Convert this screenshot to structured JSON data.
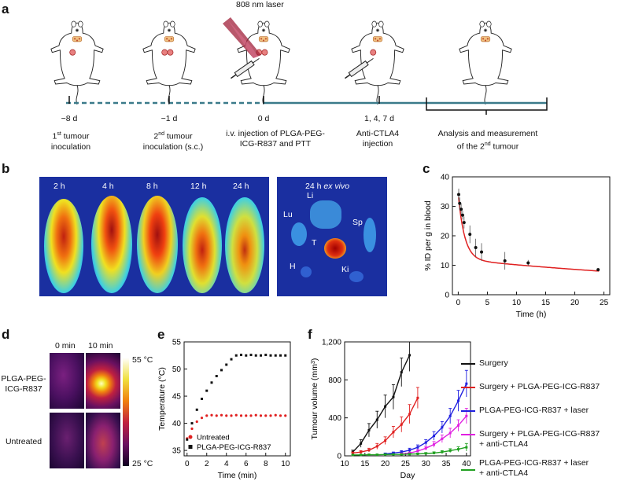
{
  "panels": {
    "a": "a",
    "b": "b",
    "c": "c",
    "d": "d",
    "e": "e",
    "f": "f"
  },
  "timeline": {
    "laser": "808 nm laser",
    "days": [
      "−8 d",
      "−1 d",
      "0 d",
      "1, 4, 7 d"
    ],
    "label1_pre": "1",
    "label1_sup": "st",
    "label1_post": " tumour",
    "label1_line2": "inoculation",
    "label2_pre": "2",
    "label2_sup": "nd",
    "label2_post": " tumour",
    "label2_line2": "inoculation (s.c.)",
    "label3_line1": "i.v. injection of PLGA-PEG-",
    "label3_line2": "ICG-R837 and PTT",
    "label4_line1": "Anti-CTLA4",
    "label4_line2": "injection",
    "label5_line1": "Analysis and measurement",
    "label5_line2": "of the 2",
    "label5_sup": "nd",
    "label5_post": " tumour"
  },
  "panel_b": {
    "times": [
      "2 h",
      "4 h",
      "8 h",
      "12 h",
      "24 h"
    ],
    "exvivo_title_pre": "24 h ",
    "exvivo_title_italic": "ex vivo",
    "organs": {
      "li": "Li",
      "lu": "Lu",
      "sp": "Sp",
      "t": "T",
      "h": "H",
      "ki": "Ki"
    }
  },
  "panel_d": {
    "col1": "0 min",
    "col2": "10 min",
    "row1_line1": "PLGA-PEG-",
    "row1_line2": "ICG-R837",
    "row2": "Untreated",
    "scale_max": "55 °C",
    "scale_min": "25 °C"
  },
  "chart_data": [
    {
      "panel": "c",
      "type": "scatter",
      "xlabel": "Time (h)",
      "ylabel": "% ID per g in blood",
      "xlim": [
        -1,
        26
      ],
      "ylim": [
        0,
        40
      ],
      "xticks": [
        0,
        5,
        10,
        15,
        20,
        25
      ],
      "yticks": [
        0,
        10,
        20,
        30,
        40
      ],
      "points": [
        {
          "x": 0.08,
          "y": 34,
          "err": 2
        },
        {
          "x": 0.25,
          "y": 31,
          "err": 2
        },
        {
          "x": 0.5,
          "y": 29,
          "err": 2
        },
        {
          "x": 0.75,
          "y": 27,
          "err": 1.5
        },
        {
          "x": 1,
          "y": 24.5,
          "err": 2
        },
        {
          "x": 2,
          "y": 20.5,
          "err": 3
        },
        {
          "x": 3,
          "y": 16,
          "err": 3
        },
        {
          "x": 4,
          "y": 14.5,
          "err": 3
        },
        {
          "x": 8,
          "y": 11.5,
          "err": 3
        },
        {
          "x": 12,
          "y": 10.8,
          "err": 1
        },
        {
          "x": 24,
          "y": 8.5,
          "err": 0.5
        }
      ],
      "fit_color": "#e02020"
    },
    {
      "panel": "e",
      "type": "scatter",
      "xlabel": "Time (min)",
      "ylabel": "Temperature (°C)",
      "xlim": [
        -0.3,
        10.5
      ],
      "ylim": [
        34,
        55
      ],
      "xticks": [
        0,
        2,
        4,
        6,
        8,
        10
      ],
      "yticks": [
        35,
        40,
        45,
        50,
        55
      ],
      "series": [
        {
          "name": "Untreated",
          "color": "#e02020",
          "marker": "circle",
          "x": [
            0,
            0.5,
            1,
            1.5,
            2,
            2.5,
            3,
            3.5,
            4,
            4.5,
            5,
            5.5,
            6,
            6.5,
            7,
            7.5,
            8,
            8.5,
            9,
            9.5,
            10
          ],
          "values": [
            37.2,
            39,
            40.3,
            41,
            41.4,
            41.5,
            41.4,
            41.5,
            41.4,
            41.4,
            41.5,
            41.4,
            41.4,
            41.4,
            41.5,
            41.4,
            41.4,
            41.4,
            41.5,
            41.4,
            41.4
          ]
        },
        {
          "name": "PLGA-PEG-ICG-R837",
          "color": "#111111",
          "marker": "square",
          "x": [
            0,
            0.5,
            1,
            1.5,
            2,
            2.5,
            3,
            3.5,
            4,
            4.5,
            5,
            5.5,
            6,
            6.5,
            7,
            7.5,
            8,
            8.5,
            9,
            9.5,
            10
          ],
          "values": [
            37,
            40,
            42.5,
            44.5,
            46,
            47.5,
            48.7,
            49.8,
            50.8,
            51.8,
            52.5,
            52.6,
            52.5,
            52.6,
            52.5,
            52.5,
            52.6,
            52.5,
            52.5,
            52.5,
            52.5
          ]
        }
      ]
    },
    {
      "panel": "f",
      "type": "line",
      "xlabel": "Day",
      "ylabel_pre": "Tumour volume (mm",
      "ylabel_sup": "3",
      "ylabel_post": ")",
      "xlim": [
        10,
        41
      ],
      "ylim": [
        0,
        1200
      ],
      "xticks": [
        10,
        15,
        20,
        25,
        30,
        35,
        40
      ],
      "yticks": [
        0,
        400,
        800,
        1200
      ],
      "ytick_labels": [
        "0",
        "400",
        "800",
        "1,200"
      ],
      "series": [
        {
          "name": "Surgery",
          "color": "#111111",
          "x": [
            12,
            14,
            16,
            18,
            20,
            22,
            24,
            26
          ],
          "values": [
            40,
            130,
            270,
            380,
            520,
            620,
            880,
            1060
          ],
          "err": [
            20,
            40,
            70,
            90,
            120,
            130,
            150,
            170
          ]
        },
        {
          "name": "Surgery + PLGA-PEG-ICG-R837",
          "color": "#e02020",
          "x": [
            12,
            14,
            16,
            18,
            20,
            22,
            24,
            26,
            28
          ],
          "values": [
            30,
            40,
            60,
            100,
            160,
            250,
            330,
            440,
            610
          ],
          "err": [
            10,
            15,
            20,
            30,
            40,
            60,
            80,
            100,
            110
          ]
        },
        {
          "name": "PLGA-PEG-ICG-R837 + laser",
          "color": "#2020e0",
          "x": [
            20,
            22,
            24,
            26,
            28,
            30,
            32,
            34,
            36,
            38,
            40
          ],
          "values": [
            20,
            30,
            40,
            60,
            90,
            140,
            210,
            300,
            420,
            580,
            760
          ],
          "err": [
            10,
            10,
            15,
            20,
            25,
            30,
            45,
            60,
            80,
            110,
            140
          ]
        },
        {
          "name": "Surgery + PLGA-PEG-ICG-R837 + anti-CTLA4",
          "color": "#e020e0",
          "x": [
            24,
            26,
            28,
            30,
            32,
            34,
            36,
            38,
            40
          ],
          "values": [
            20,
            30,
            50,
            80,
            120,
            180,
            240,
            320,
            420
          ],
          "err": [
            10,
            10,
            15,
            20,
            30,
            40,
            50,
            60,
            80
          ]
        },
        {
          "name": "PLGA-PEG-ICG-R837 + laser + anti-CTLA4",
          "color": "#20a020",
          "x": [
            12,
            14,
            16,
            18,
            20,
            22,
            24,
            26,
            28,
            30,
            32,
            34,
            36,
            38,
            40
          ],
          "values": [
            10,
            10,
            12,
            12,
            14,
            15,
            15,
            18,
            20,
            25,
            30,
            40,
            55,
            70,
            90
          ],
          "err": [
            5,
            5,
            5,
            5,
            6,
            6,
            6,
            8,
            8,
            10,
            12,
            15,
            20,
            25,
            40
          ]
        }
      ],
      "legend": {
        "l1": "Surgery",
        "l2": "Surgery + PLGA-PEG-ICG-R837",
        "l3": "PLGA-PEG-ICG-R837 + laser",
        "l4a": "Surgery + PLGA-PEG-ICG-R837",
        "l4b": "+ anti-CTLA4",
        "l5a": "PLGA-PEG-ICG-R837 + laser",
        "l5b": "+ anti-CTLA4"
      }
    }
  ]
}
